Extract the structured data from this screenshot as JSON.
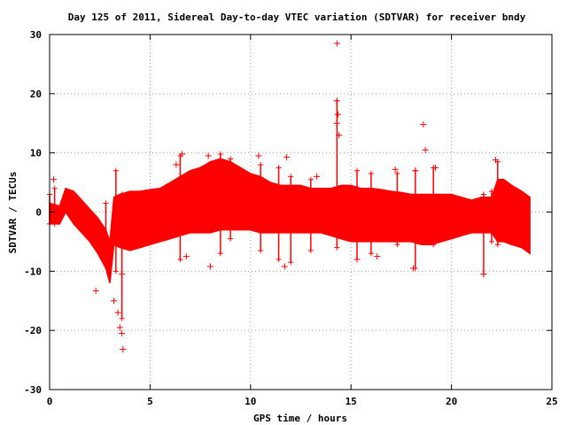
{
  "chart_data": {
    "type": "scatter",
    "title": "Day 125 of 2011, Sidereal Day-to-day VTEC variation (SDTVAR) for receiver bndy",
    "xlabel": "GPS time / hours",
    "ylabel": "SDTVAR / TECUs",
    "xlim": [
      0,
      25
    ],
    "ylim": [
      -30,
      30
    ],
    "xticks": [
      0,
      5,
      10,
      15,
      20,
      25
    ],
    "yticks": [
      -30,
      -20,
      -10,
      0,
      10,
      20,
      30
    ],
    "grid": true,
    "marker": "+",
    "color": "#ff0000",
    "envelope": {
      "x": [
        0.0,
        0.5,
        0.8,
        1.2,
        1.6,
        2.0,
        2.4,
        2.8,
        3.0,
        3.2,
        3.5,
        4.0,
        4.5,
        5.0,
        5.5,
        6.0,
        6.5,
        7.0,
        7.5,
        8.0,
        8.5,
        9.0,
        9.5,
        10.0,
        10.5,
        11.0,
        11.5,
        12.0,
        12.5,
        13.0,
        13.5,
        14.0,
        14.5,
        15.0,
        15.5,
        16.0,
        16.5,
        17.0,
        17.5,
        18.0,
        18.5,
        19.0,
        19.5,
        20.0,
        20.5,
        21.0,
        21.5,
        22.0,
        22.3,
        22.6,
        23.0,
        23.5,
        23.9
      ],
      "upper": [
        1.5,
        1.0,
        4.0,
        3.5,
        2.0,
        0.5,
        -1.0,
        -3.0,
        -5.0,
        2.5,
        3.0,
        3.5,
        3.5,
        3.8,
        4.0,
        5.0,
        6.0,
        7.0,
        7.5,
        8.5,
        9.0,
        8.5,
        7.5,
        6.5,
        6.0,
        5.0,
        4.5,
        4.5,
        4.5,
        4.0,
        4.0,
        4.0,
        4.5,
        4.5,
        4.0,
        4.0,
        3.8,
        3.5,
        3.3,
        3.0,
        3.0,
        3.0,
        3.0,
        3.0,
        2.5,
        2.0,
        2.5,
        2.5,
        5.5,
        5.5,
        4.5,
        3.5,
        2.5
      ],
      "lower": [
        -2.0,
        -2.0,
        0.0,
        -2.0,
        -3.5,
        -5.0,
        -7.0,
        -9.5,
        -12.0,
        -5.5,
        -6.0,
        -6.5,
        -6.0,
        -5.5,
        -5.0,
        -4.5,
        -4.0,
        -3.5,
        -3.5,
        -3.5,
        -3.0,
        -3.0,
        -3.0,
        -3.0,
        -3.5,
        -3.5,
        -3.5,
        -3.5,
        -3.5,
        -3.5,
        -3.5,
        -4.0,
        -4.5,
        -5.0,
        -5.0,
        -5.0,
        -5.0,
        -5.0,
        -5.0,
        -5.0,
        -5.5,
        -5.5,
        -5.0,
        -4.5,
        -4.0,
        -3.5,
        -3.5,
        -3.5,
        -5.0,
        -5.0,
        -5.5,
        -6.0,
        -7.0
      ]
    },
    "outliers": [
      {
        "x": 14.3,
        "y": 28.5
      },
      {
        "x": 14.3,
        "y": 18.8
      },
      {
        "x": 14.35,
        "y": 16.5
      },
      {
        "x": 14.3,
        "y": 15.0
      },
      {
        "x": 14.4,
        "y": 13.0
      },
      {
        "x": 18.6,
        "y": 14.8
      },
      {
        "x": 18.7,
        "y": 10.5
      },
      {
        "x": 6.3,
        "y": 8.0
      },
      {
        "x": 6.6,
        "y": 9.8
      },
      {
        "x": 7.9,
        "y": 9.5
      },
      {
        "x": 10.4,
        "y": 9.5
      },
      {
        "x": 11.8,
        "y": 9.3
      },
      {
        "x": 13.3,
        "y": 6.0
      },
      {
        "x": 17.2,
        "y": 7.2
      },
      {
        "x": 18.2,
        "y": 7.0
      },
      {
        "x": 19.2,
        "y": 7.5
      },
      {
        "x": 22.2,
        "y": 8.8
      },
      {
        "x": 0.2,
        "y": 5.5
      },
      {
        "x": 2.3,
        "y": -13.3
      },
      {
        "x": 3.2,
        "y": -15.0
      },
      {
        "x": 3.4,
        "y": -17.0
      },
      {
        "x": 3.5,
        "y": -19.5
      },
      {
        "x": 3.6,
        "y": -20.5
      },
      {
        "x": 3.65,
        "y": -23.2
      },
      {
        "x": 3.6,
        "y": -10.5
      },
      {
        "x": 8.0,
        "y": -9.2
      },
      {
        "x": 11.7,
        "y": -9.2
      },
      {
        "x": 18.1,
        "y": -9.5
      },
      {
        "x": 21.6,
        "y": -10.5
      },
      {
        "x": 6.8,
        "y": -7.5
      },
      {
        "x": 15.3,
        "y": -8.0
      },
      {
        "x": 16.3,
        "y": -7.5
      }
    ],
    "spikes": [
      {
        "x": 0.0,
        "top": 3.0,
        "bottom": -2.0
      },
      {
        "x": 0.25,
        "top": 4.0,
        "bottom": -2.0
      },
      {
        "x": 2.8,
        "top": 1.5,
        "bottom": -4.0
      },
      {
        "x": 3.3,
        "top": 7.0,
        "bottom": -10.0
      },
      {
        "x": 3.6,
        "top": 3.0,
        "bottom": -18.0
      },
      {
        "x": 6.5,
        "top": 9.5,
        "bottom": -8.0
      },
      {
        "x": 8.5,
        "top": 9.8,
        "bottom": -7.0
      },
      {
        "x": 9.0,
        "top": 9.0,
        "bottom": -4.5
      },
      {
        "x": 10.5,
        "top": 8.0,
        "bottom": -6.5
      },
      {
        "x": 11.4,
        "top": 7.5,
        "bottom": -8.0
      },
      {
        "x": 12.0,
        "top": 6.0,
        "bottom": -8.5
      },
      {
        "x": 13.0,
        "top": 5.5,
        "bottom": -6.5
      },
      {
        "x": 14.3,
        "top": 18.8,
        "bottom": -6.0
      },
      {
        "x": 15.3,
        "top": 7.0,
        "bottom": -8.0
      },
      {
        "x": 16.0,
        "top": 6.5,
        "bottom": -7.0
      },
      {
        "x": 17.3,
        "top": 6.5,
        "bottom": -5.5
      },
      {
        "x": 18.2,
        "top": 7.0,
        "bottom": -9.5
      },
      {
        "x": 19.1,
        "top": 7.5,
        "bottom": -5.5
      },
      {
        "x": 21.6,
        "top": 3.0,
        "bottom": -10.5
      },
      {
        "x": 22.0,
        "top": 3.5,
        "bottom": -5.0
      },
      {
        "x": 22.3,
        "top": 8.5,
        "bottom": -5.5
      }
    ]
  }
}
